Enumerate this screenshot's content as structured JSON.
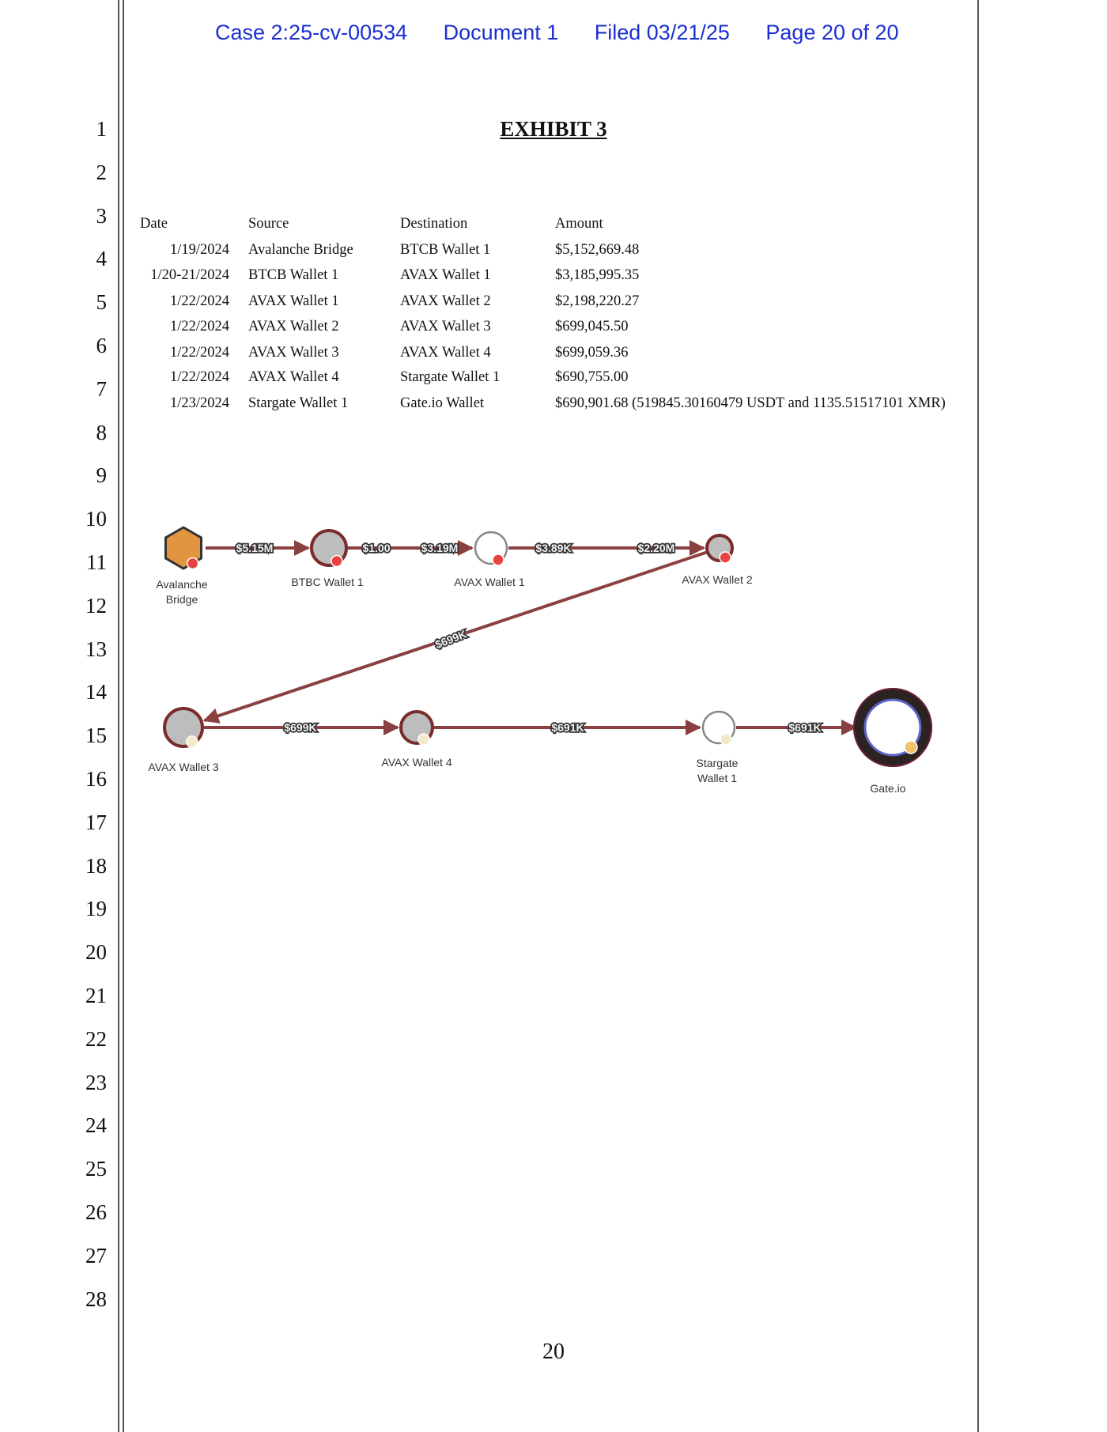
{
  "header": {
    "case": "Case 2:25-cv-00534",
    "document": "Document 1",
    "filed": "Filed 03/21/25",
    "page": "Page 20 of 20"
  },
  "line_numbers": [
    "1",
    "2",
    "3",
    "4",
    "5",
    "6",
    "7",
    "8",
    "9",
    "10",
    "11",
    "12",
    "13",
    "14",
    "15",
    "16",
    "17",
    "18",
    "19",
    "20",
    "21",
    "22",
    "23",
    "24",
    "25",
    "26",
    "27",
    "28"
  ],
  "title": "EXHIBIT 3",
  "table": {
    "headers": [
      "Date",
      "Source",
      "Destination",
      "Amount"
    ],
    "rows": [
      [
        "1/19/2024",
        "Avalanche Bridge",
        "BTCB Wallet 1",
        "$5,152,669.48"
      ],
      [
        "1/20-21/2024",
        "BTCB Wallet 1",
        "AVAX Wallet 1",
        "$3,185,995.35"
      ],
      [
        "1/22/2024",
        "AVAX Wallet 1",
        "AVAX Wallet 2",
        "$2,198,220.27"
      ],
      [
        "1/22/2024",
        "AVAX Wallet 2",
        "AVAX Wallet 3",
        "$699,045.50"
      ],
      [
        "1/22/2024",
        "AVAX Wallet 3",
        "AVAX Wallet 4",
        "$699,059.36"
      ],
      [
        "1/22/2024",
        "AVAX Wallet 4",
        "Stargate Wallet 1",
        "$690,755.00"
      ],
      [
        "1/23/2024",
        "Stargate Wallet 1",
        "Gate.io Wallet",
        "$690,901.68 (519845.30160479 USDT and 1135.51517101 XMR)"
      ]
    ]
  },
  "diagram": {
    "nodes": [
      {
        "label": [
          "Avalanche",
          "Bridge"
        ]
      },
      {
        "label": [
          "BTBC Wallet 1"
        ]
      },
      {
        "label": [
          "AVAX Wallet 1"
        ]
      },
      {
        "label": [
          "AVAX Wallet 2"
        ]
      },
      {
        "label": [
          "AVAX Wallet 3"
        ]
      },
      {
        "label": [
          "AVAX Wallet 4"
        ]
      },
      {
        "label": [
          "Stargate",
          "Wallet 1"
        ]
      },
      {
        "label": [
          "Gate.io"
        ]
      }
    ],
    "edge_labels": [
      "$5.15M",
      "$1.00",
      "$3.19M",
      "$3.89K",
      "$2.20M",
      "$699K",
      "$699K",
      "$691K",
      "$691K"
    ],
    "colors": {
      "bridge": "#e2953f",
      "wallet_ring": "#7a2b2b",
      "wallet_fill": "#bdbdbd",
      "edge": "#8a4040",
      "avax_badge": "#e84142",
      "gate_ring": "#2b2320",
      "gate_inner": "#5b63c9"
    }
  },
  "page_number": "20"
}
